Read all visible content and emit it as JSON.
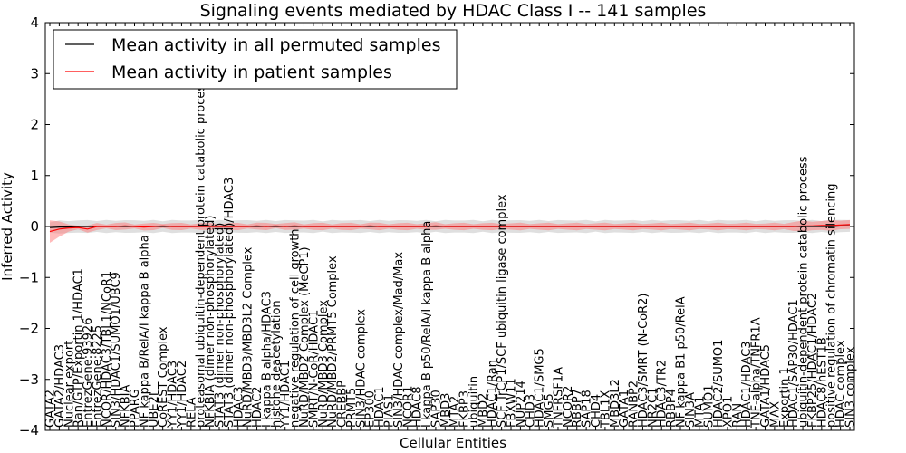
{
  "chart_data": {
    "type": "line",
    "title": "Signaling events mediated by HDAC Class I -- 141 samples",
    "xlabel": "Cellular Entities",
    "ylabel": "Inferred Activity",
    "ylim": [
      -4,
      4
    ],
    "yticks": [
      -4,
      -3,
      -2,
      -1,
      0,
      1,
      2,
      3,
      4
    ],
    "legend": {
      "placement": "top-left",
      "entries": [
        {
          "label": "Mean activity in all permuted samples",
          "color": "#000000"
        },
        {
          "label": "Mean activity in patient samples",
          "color": "#ff0000"
        }
      ]
    },
    "categories": [
      "GATA2",
      "GATA2/HDAC3",
      "Nuclear export",
      "Ran/GTP/Exportin 1/HDAC1",
      "EntrezGene:93926",
      "EntrezGene:8225",
      "NCOR/HDAC3/TBL1/NCoR1",
      "SIN3/HDAC1/SUMO1/UBC9",
      "NFKBIA",
      "PPARG",
      "NF kappa B/RelA/I kappa B alpha",
      "UBE2I",
      "CoREST Complex",
      "YY1/HDAC3",
      "YY1/HDAC2",
      "RELA",
      "proteasomal ubiquitin-dependent protein catabolic process",
      "NFKBIA (dimer non-phosphorylated)",
      "STAT3 (dimer non-phosphorylated)",
      "STAT3 (dimer non-phosphorylated)/HDAC3",
      "HDAC3",
      "NuRD/MBD3/MBD3L2 Complex",
      "HDAC2",
      "I kappa B alpha/HDAC3",
      "histone deacetylation",
      "YY1/HDAC1",
      "negative regulation of cell growth",
      "NuRD/MBD2 Complex (MeCP1)",
      "SMRT/N-CoR/HDAC1",
      "NuRD/MBD3 Complex",
      "NuRD/MBD2/PRMT5 Complex",
      "CREBBP",
      "PRMT5",
      "SIN3/HDAC complex",
      "EP300",
      "HDAC1",
      "PIAS1",
      "SIN3/HDAC complex/Mad/Max",
      "NCOR1",
      "HDAC8",
      "I kappa B p50/RelA/I kappa B alpha",
      "SAP30",
      "MBD3",
      "MTA2",
      "FKBP3",
      "ubiquitin",
      "MBD2",
      "HDAC1/Ran",
      "SCF TrCP1/SCF ubiquitin ligase complex",
      "FBXW11",
      "NUP214",
      "CHD3",
      "HDAC1/SMG5",
      "SMG5",
      "TNFRSF1A",
      "NCOR2",
      "RBBP7",
      "SAP18",
      "CHD4",
      "TBL1X",
      "MBD3L2",
      "GATA1",
      "RANBP2",
      "HDAC3/SMRT (N-CoR2)",
      "NR2C1",
      "HDAC3/TR2",
      "RBBP4",
      "NF kappa B1 p50/RelA",
      "SIN3A",
      "MTA1",
      "SUMO1",
      "HDAC2/SUMO1",
      "XPO1",
      "RAN",
      "HDAC1/HDAC3",
      "TNF-alpha/TNFR1A",
      "GATA1/HDAC5",
      "MAX",
      "Exportin 1",
      "HDAC1/SAP30/HDAC1",
      "ubiquitin-dependent protein catabolic process",
      "FKBP25/HDAC1/HDAC2",
      "HDAC8/hEST1B",
      "positive regulation of chromatin silencing",
      "HDAC complex",
      "SIN3 complex"
    ],
    "series": [
      {
        "name": "Mean activity in all permuted samples",
        "values": [
          -0.02,
          -0.01,
          -0.01,
          0,
          0,
          0,
          0,
          0,
          0,
          0,
          0,
          0,
          0,
          0,
          0,
          0,
          0,
          0,
          0,
          0,
          0,
          0,
          0,
          0,
          0,
          0,
          0,
          0,
          0,
          0,
          0,
          0,
          0,
          0,
          0,
          0,
          0,
          0,
          0,
          0,
          0,
          0,
          0,
          0,
          0,
          0,
          0,
          0,
          0,
          0,
          0,
          0,
          0,
          0,
          0,
          0,
          0,
          0,
          0,
          0,
          0,
          0,
          0,
          0,
          0,
          0,
          0,
          0,
          0,
          0,
          0,
          0,
          0,
          0,
          0,
          0,
          0,
          0,
          0,
          0,
          0,
          0,
          0,
          0,
          0.01,
          0.01
        ]
      },
      {
        "name": "Mean activity in patient samples",
        "values": [
          -0.1,
          -0.05,
          -0.03,
          -0.02,
          -0.05,
          0,
          0,
          0,
          0.01,
          0,
          -0.01,
          0,
          0.01,
          0,
          0,
          0,
          0,
          0,
          0,
          0,
          0,
          0,
          0.01,
          0,
          0.01,
          0,
          0.01,
          0,
          0,
          0,
          0,
          0,
          0,
          0,
          0.01,
          0,
          0,
          0,
          0,
          0,
          0,
          0.01,
          0,
          0,
          0,
          0,
          0,
          0,
          0,
          0,
          0,
          0,
          0,
          0,
          0,
          0,
          0,
          0,
          0,
          0,
          0,
          0,
          0,
          0,
          0,
          0,
          0,
          0,
          0,
          0,
          0,
          0,
          0,
          0,
          0,
          0,
          0,
          0,
          0,
          0,
          0.01,
          0.01,
          0.02,
          0.02,
          0.03,
          0.04
        ]
      }
    ]
  }
}
